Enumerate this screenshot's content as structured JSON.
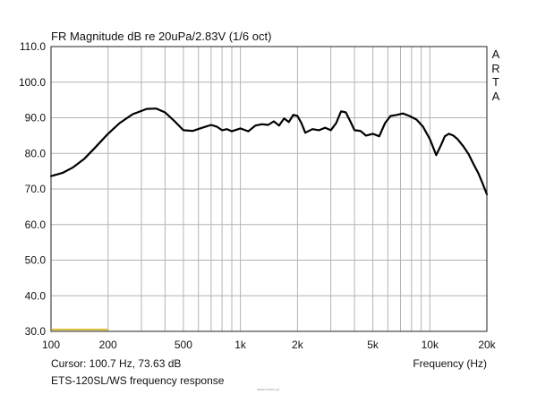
{
  "header": {
    "title": "FR Magnitude dB re 20uPa/2.83V (1/6 oct)"
  },
  "brand": {
    "letters": [
      "A",
      "R",
      "T",
      "A"
    ]
  },
  "footer": {
    "cursor": "Cursor: 100.7 Hz, 73.63 dB",
    "xlabel": "Frequency (Hz)",
    "caption": "ETS-120SL/WS frequency response",
    "watermark": "www.ceneo.pl"
  },
  "colors": {
    "curve": "#000000",
    "grid": "#b4b4b4",
    "marker": "#d8c13a",
    "axis": "#222222"
  },
  "chart_data": {
    "type": "line",
    "title": "FR Magnitude dB re 20uPa/2.83V (1/6 oct)",
    "xlabel": "Frequency (Hz)",
    "ylabel": "",
    "xscale": "log",
    "xlim": [
      100,
      20000
    ],
    "ylim": [
      30,
      110
    ],
    "x_ticks": [
      {
        "value": 100,
        "label": "100"
      },
      {
        "value": 200,
        "label": "200"
      },
      {
        "value": 500,
        "label": "500"
      },
      {
        "value": 1000,
        "label": "1k"
      },
      {
        "value": 2000,
        "label": "2k"
      },
      {
        "value": 5000,
        "label": "5k"
      },
      {
        "value": 10000,
        "label": "10k"
      },
      {
        "value": 20000,
        "label": "20k"
      }
    ],
    "y_ticks": [
      {
        "value": 30,
        "label": "30.0"
      },
      {
        "value": 40,
        "label": "40.0"
      },
      {
        "value": 50,
        "label": "50.0"
      },
      {
        "value": 60,
        "label": "60.0"
      },
      {
        "value": 70,
        "label": "70.0"
      },
      {
        "value": 80,
        "label": "80.0"
      },
      {
        "value": 90,
        "label": "90.0"
      },
      {
        "value": 100,
        "label": "100.0"
      },
      {
        "value": 110,
        "label": "110.0"
      }
    ],
    "grid": true,
    "series": [
      {
        "x": [
          100,
          115,
          130,
          150,
          170,
          200,
          230,
          270,
          320,
          360,
          400,
          450,
          500,
          560,
          630,
          700,
          750,
          800,
          850,
          900,
          1000,
          1100,
          1200,
          1300,
          1400,
          1500,
          1600,
          1700,
          1800,
          1900,
          2000,
          2100,
          2200,
          2400,
          2600,
          2800,
          3000,
          3200,
          3400,
          3600,
          3800,
          4000,
          4300,
          4600,
          5000,
          5400,
          5800,
          6200,
          6700,
          7200,
          7800,
          8500,
          9200,
          10000,
          10800,
          11500,
          12000,
          12600,
          13300,
          14000,
          15000,
          16000,
          17000,
          18000,
          19000,
          20000
        ],
        "y": [
          73.6,
          74.5,
          76,
          78.5,
          81.5,
          85.5,
          88.5,
          91,
          92.5,
          92.6,
          91.5,
          89,
          86.5,
          86.3,
          87.2,
          88,
          87.5,
          86.5,
          86.8,
          86.2,
          87,
          86.2,
          87.8,
          88.2,
          88,
          89,
          87.8,
          89.8,
          88.8,
          90.8,
          90.5,
          88.5,
          85.8,
          86.8,
          86.5,
          87.2,
          86.5,
          88.5,
          91.8,
          91.5,
          89,
          86.5,
          86.3,
          85,
          85.5,
          84.8,
          88.5,
          90.5,
          90.8,
          91.2,
          90.5,
          89.5,
          87.5,
          84,
          79.5,
          82.5,
          84.8,
          85.5,
          85,
          84,
          82,
          79.8,
          77,
          74.5,
          71.5,
          68.5
        ]
      }
    ]
  }
}
